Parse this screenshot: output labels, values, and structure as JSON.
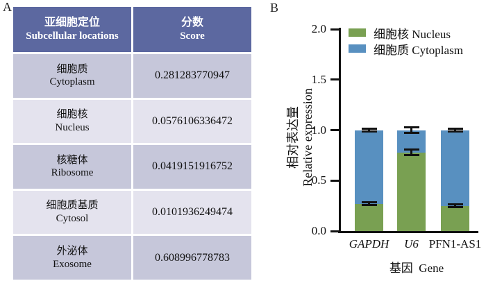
{
  "panels": {
    "a": "A",
    "b": "B"
  },
  "table": {
    "header": {
      "location_zh": "亚细胞定位",
      "location_en": "Subcellular locations",
      "score_zh": "分数",
      "score_en": "Score"
    },
    "rows": [
      {
        "zh": "细胞质",
        "en": "Cytoplasm",
        "score": "0.281283770947"
      },
      {
        "zh": "细胞核",
        "en": "Nucleus",
        "score": "0.0576106336472"
      },
      {
        "zh": "核糖体",
        "en": "Ribosome",
        "score": "0.0419151916752"
      },
      {
        "zh": "细胞质基质",
        "en": "Cytosol",
        "score": "0.0101936249474"
      },
      {
        "zh": "外泌体",
        "en": "Exosome",
        "score": "0.608996778783"
      }
    ],
    "colors": {
      "header_bg": "#5c68a0",
      "header_text": "#ffffff",
      "row_dark_bg": "#c6c7da",
      "row_light_bg": "#e4e3ee",
      "row_text": "#111111"
    }
  },
  "chart_data": {
    "type": "bar",
    "stacked": true,
    "categories": [
      {
        "label": "GAPDH",
        "italic": true
      },
      {
        "label": "U6",
        "italic": true
      },
      {
        "label": "PFN1-AS1",
        "italic": false
      }
    ],
    "series": [
      {
        "key": "nucleus",
        "name": "细胞核 Nucleus",
        "color": "#79a052",
        "values": [
          0.27,
          0.78,
          0.25
        ],
        "sd": [
          0.015,
          0.025,
          0.015
        ]
      },
      {
        "key": "cytoplasm",
        "name": "细胞质 Cytoplasm",
        "color": "#5890c0",
        "values": [
          0.73,
          0.22,
          0.75
        ],
        "sd": [
          0.015,
          0.03,
          0.012
        ]
      }
    ],
    "totals": [
      1.0,
      1.0,
      1.0
    ],
    "ylabel": [
      "相对表达量",
      "Relative expression"
    ],
    "xlabel": "基因  Gene",
    "ytick_labels": [
      "2.0",
      "1.5",
      "1.0",
      "0.5",
      "0.0"
    ],
    "yticks": [
      2.0,
      1.5,
      1.0,
      0.5,
      0.0
    ],
    "ylim": [
      0,
      2.0
    ],
    "grid": false,
    "legend_position": "top-left-inside",
    "axis_color": "#111111",
    "error_bar_color": "#111111"
  }
}
